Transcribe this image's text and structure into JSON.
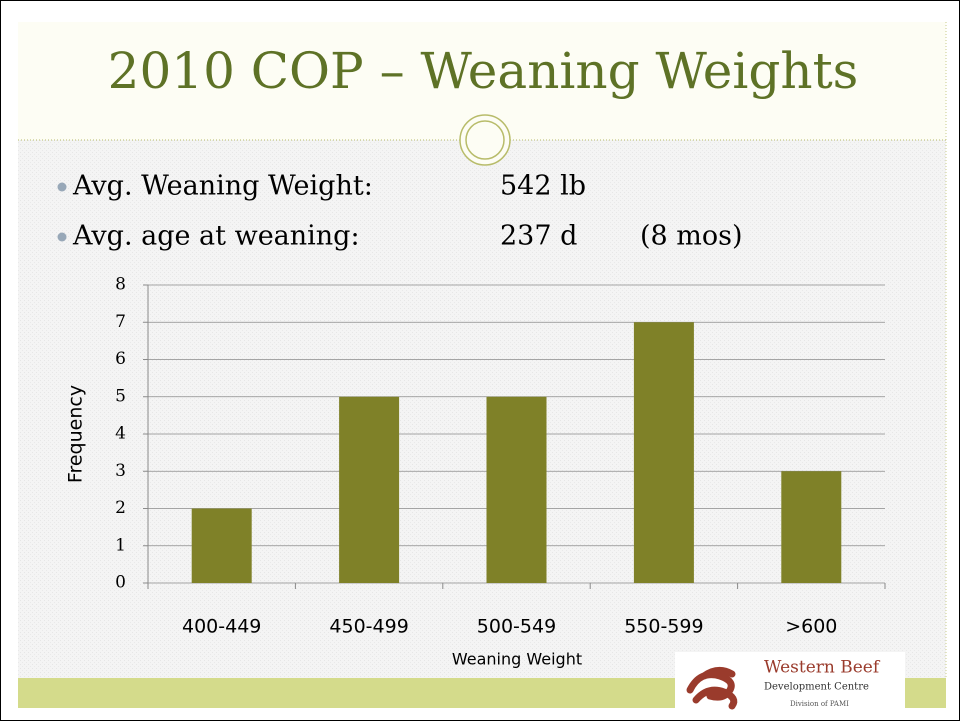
{
  "title": "2010 COP – Weaning Weights",
  "bullets": [
    {
      "label": "Avg. Weaning Weight:",
      "value": "542 lb"
    },
    {
      "label": "Avg. age at weaning:",
      "value": "237 d",
      "note": "(8 mos)"
    }
  ],
  "logo": {
    "name": "Western Beef",
    "line2": "Development Centre",
    "line3": "Division of PAMI"
  },
  "chart_data": {
    "type": "bar",
    "categories": [
      "400-449",
      "450-499",
      "500-549",
      "550-599",
      ">600"
    ],
    "values": [
      2,
      5,
      5,
      7,
      3
    ],
    "color": "#7f8128",
    "xlabel": "Weaning Weight",
    "ylabel": "Frequency",
    "ylim": [
      0,
      8
    ],
    "yticks": [
      0,
      1,
      2,
      3,
      4,
      5,
      6,
      7,
      8
    ],
    "grid": true
  }
}
